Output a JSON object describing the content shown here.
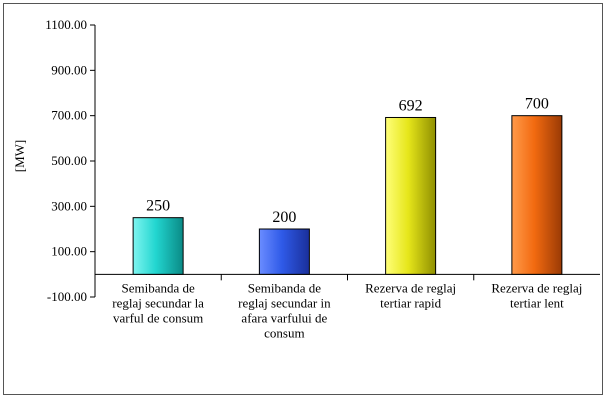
{
  "chart_data": {
    "type": "bar",
    "categories": [
      [
        "Semibanda de",
        "reglaj secundar la",
        "varful de consum"
      ],
      [
        "Semibanda de",
        "reglaj secundar in",
        "afara varfului de",
        "consum"
      ],
      [
        "Rezerva de reglaj",
        "tertiar rapid"
      ],
      [
        "Rezerva de reglaj",
        "tertiar lent"
      ]
    ],
    "values": [
      250,
      200,
      692,
      700
    ],
    "value_labels": [
      "250",
      "200",
      "692",
      "700"
    ],
    "ylabel": "[MW]",
    "ylim": [
      -100,
      1100
    ],
    "yticks": [
      -100,
      100,
      300,
      500,
      700,
      900,
      1100
    ],
    "ytick_labels": [
      "-100.00",
      "100.00",
      "300.00",
      "500.00",
      "700.00",
      "900.00",
      "1100.00"
    ],
    "grid": false,
    "legend": "none",
    "colors": [
      {
        "light": "#7ff5f0",
        "mid": "#22d6d0",
        "dark": "#0a8a86"
      },
      {
        "light": "#6a8cff",
        "mid": "#2f5ae8",
        "dark": "#1a2f9a"
      },
      {
        "light": "#ffff7a",
        "mid": "#e6e61a",
        "dark": "#8f8f00"
      },
      {
        "light": "#ff9a4a",
        "mid": "#f26a10",
        "dark": "#9a3a05"
      }
    ]
  }
}
